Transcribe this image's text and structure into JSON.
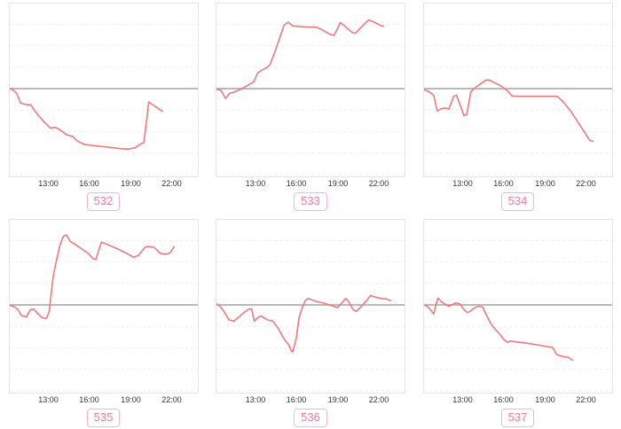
{
  "axis": {
    "ticks": [
      "13:00",
      "16:00",
      "19:00",
      "22:00"
    ]
  },
  "style": {
    "line_color": "#f0787c",
    "zero_line_color": "#a3a3a3",
    "grid_color": "#ededed",
    "box_border_color": "#e4e4e4",
    "badge_text_color": "#ee7b99",
    "badge_border_color": "#f6b6c6",
    "tick_label_color": "#333333"
  },
  "titles": {
    "clipped_placeholder": "__ _ ___ __,_ __ __"
  },
  "chart_data": [
    {
      "type": "line",
      "label": "532",
      "x_tick_labels": [
        "13:00",
        "16:00",
        "19:00",
        "22:00"
      ],
      "baseline": 0,
      "y_unit": "relative change (no y-axis labels shown); 1 = one gridline step",
      "x_hours": [
        10.2,
        10.45,
        10.7,
        11.0,
        11.35,
        11.75,
        12.0,
        12.4,
        12.8,
        13.15,
        13.5,
        13.85,
        14.3,
        14.8,
        15.1,
        15.6,
        16.1,
        17.2,
        18.3,
        18.8,
        19.3,
        19.65,
        19.95,
        20.3,
        20.65,
        21.3
      ],
      "y_values": [
        0,
        -0.07,
        -0.22,
        -0.68,
        -0.74,
        -0.76,
        -1.02,
        -1.34,
        -1.62,
        -1.84,
        -1.8,
        -1.92,
        -2.14,
        -2.24,
        -2.44,
        -2.6,
        -2.64,
        -2.72,
        -2.8,
        -2.82,
        -2.76,
        -2.6,
        -2.52,
        -0.62,
        -0.78,
        -1.06
      ]
    },
    {
      "type": "line",
      "label": "533",
      "x_tick_labels": [
        "13:00",
        "16:00",
        "19:00",
        "22:00"
      ],
      "baseline": 0,
      "y_unit": "relative change (no y-axis labels shown); 1 = one gridline step",
      "x_hours": [
        10.2,
        10.55,
        10.85,
        11.15,
        11.5,
        12.0,
        12.55,
        12.9,
        13.2,
        13.55,
        13.85,
        14.1,
        14.6,
        15.1,
        15.4,
        15.75,
        16.6,
        17.5,
        17.95,
        18.4,
        18.75,
        19.2,
        19.55,
        20.05,
        20.3,
        20.75,
        21.25,
        21.6,
        22.1,
        22.35
      ],
      "y_values": [
        -0.02,
        -0.1,
        -0.46,
        -0.22,
        -0.16,
        -0.02,
        0.18,
        0.32,
        0.74,
        0.88,
        0.98,
        1.12,
        2.0,
        2.95,
        3.1,
        2.92,
        2.88,
        2.86,
        2.72,
        2.55,
        2.48,
        3.08,
        2.9,
        2.62,
        2.58,
        2.88,
        3.2,
        3.12,
        2.95,
        2.9
      ]
    },
    {
      "type": "line",
      "label": "534",
      "x_tick_labels": [
        "13:00",
        "16:00",
        "19:00",
        "22:00"
      ],
      "baseline": 0,
      "y_unit": "relative change (no y-axis labels shown); 1 = one gridline step",
      "x_hours": [
        10.2,
        10.6,
        10.9,
        11.15,
        11.45,
        11.75,
        12.0,
        12.35,
        12.55,
        12.85,
        13.1,
        13.3,
        13.6,
        13.85,
        14.3,
        14.7,
        14.95,
        15.3,
        15.75,
        16.2,
        16.6,
        17.0,
        19.9,
        20.35,
        20.9,
        21.5,
        21.95,
        22.25,
        22.5
      ],
      "y_values": [
        -0.05,
        -0.16,
        -0.32,
        -1.04,
        -0.94,
        -0.9,
        -0.96,
        -0.36,
        -0.3,
        -0.82,
        -1.26,
        -1.2,
        -0.14,
        0.02,
        0.22,
        0.4,
        0.4,
        0.28,
        0.14,
        -0.06,
        -0.34,
        -0.36,
        -0.36,
        -0.64,
        -1.08,
        -1.68,
        -2.12,
        -2.42,
        -2.46
      ]
    },
    {
      "type": "line",
      "label": "535",
      "x_tick_labels": [
        "13:00",
        "16:00",
        "19:00",
        "22:00"
      ],
      "baseline": 0,
      "y_unit": "relative change (no y-axis labels shown); 1 = one gridline step",
      "x_hours": [
        10.2,
        10.55,
        10.8,
        11.05,
        11.4,
        11.7,
        11.95,
        12.25,
        12.55,
        12.85,
        13.05,
        13.35,
        13.6,
        13.85,
        14.1,
        14.3,
        14.6,
        15.0,
        15.45,
        15.9,
        16.25,
        16.45,
        16.85,
        17.15,
        17.65,
        18.2,
        18.7,
        19.2,
        19.55,
        20.05,
        20.35,
        20.7,
        21.15,
        21.55,
        21.85,
        22.15
      ],
      "y_values": [
        -0.02,
        -0.1,
        -0.22,
        -0.5,
        -0.56,
        -0.22,
        -0.2,
        -0.42,
        -0.6,
        -0.64,
        -0.35,
        1.3,
        2.1,
        2.8,
        3.2,
        3.26,
        2.96,
        2.8,
        2.6,
        2.4,
        2.16,
        2.12,
        2.92,
        2.86,
        2.72,
        2.56,
        2.4,
        2.22,
        2.3,
        2.7,
        2.72,
        2.68,
        2.4,
        2.36,
        2.42,
        2.72
      ]
    },
    {
      "type": "line",
      "label": "536",
      "x_tick_labels": [
        "13:00",
        "16:00",
        "19:00",
        "22:00"
      ],
      "baseline": 0,
      "y_unit": "relative change (no y-axis labels shown); 1 = one gridline step",
      "x_hours": [
        10.2,
        10.5,
        10.8,
        11.1,
        11.45,
        11.85,
        12.2,
        12.55,
        12.75,
        12.95,
        13.25,
        13.45,
        13.9,
        14.3,
        14.65,
        15.0,
        15.25,
        15.45,
        15.65,
        15.75,
        16.0,
        16.2,
        16.45,
        16.65,
        16.85,
        17.45,
        18.05,
        18.6,
        19.0,
        19.35,
        19.6,
        19.85,
        20.1,
        20.35,
        20.7,
        21.1,
        21.4,
        21.75,
        22.15,
        22.55,
        22.85
      ],
      "y_values": [
        0.05,
        -0.1,
        -0.36,
        -0.7,
        -0.76,
        -0.55,
        -0.35,
        -0.2,
        -0.18,
        -0.76,
        -0.56,
        -0.52,
        -0.7,
        -0.76,
        -1.06,
        -1.46,
        -1.72,
        -1.86,
        -2.16,
        -2.18,
        -1.55,
        -0.6,
        -0.1,
        0.2,
        0.3,
        0.16,
        0.08,
        -0.04,
        -0.12,
        0.12,
        0.3,
        0.12,
        -0.2,
        -0.3,
        -0.1,
        0.2,
        0.44,
        0.36,
        0.3,
        0.28,
        0.2
      ]
    },
    {
      "type": "line",
      "label": "537",
      "x_tick_labels": [
        "13:00",
        "16:00",
        "19:00",
        "22:00"
      ],
      "baseline": 0,
      "y_unit": "relative change (no y-axis labels shown); 1 = one gridline step",
      "x_hours": [
        10.2,
        10.5,
        10.75,
        10.9,
        11.1,
        11.2,
        11.5,
        11.8,
        12.0,
        12.25,
        12.5,
        12.8,
        13.1,
        13.35,
        13.6,
        13.9,
        14.2,
        14.45,
        14.8,
        15.1,
        15.4,
        15.7,
        16.0,
        16.25,
        16.5,
        16.8,
        17.4,
        18.4,
        19.3,
        19.55,
        19.85,
        20.25,
        20.65,
        21.0
      ],
      "y_values": [
        0,
        -0.1,
        -0.3,
        -0.42,
        0.1,
        0.32,
        0.12,
        0,
        -0.06,
        0.02,
        0.1,
        0.04,
        -0.22,
        -0.36,
        -0.28,
        -0.12,
        -0.06,
        -0.1,
        -0.56,
        -0.92,
        -1.16,
        -1.36,
        -1.62,
        -1.74,
        -1.68,
        -1.72,
        -1.76,
        -1.86,
        -1.96,
        -1.98,
        -2.32,
        -2.4,
        -2.44,
        -2.58
      ]
    }
  ]
}
